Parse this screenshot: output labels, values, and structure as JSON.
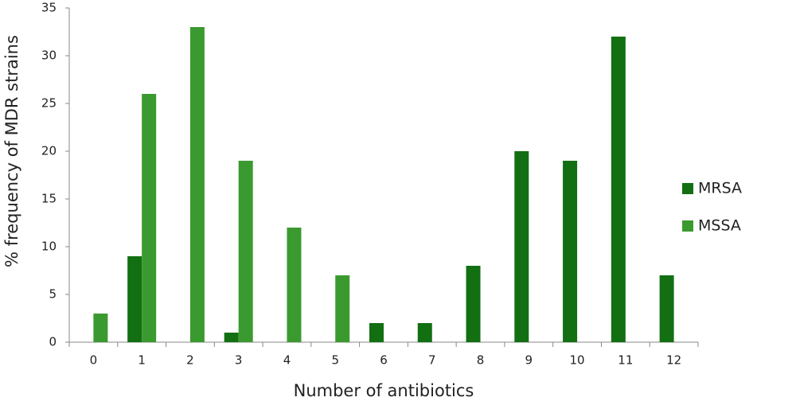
{
  "chart_data": {
    "type": "bar",
    "x_label": "Number of antibiotics",
    "y_label": "% frequency of MDR strains",
    "categories": [
      "0",
      "1",
      "2",
      "3",
      "4",
      "5",
      "6",
      "7",
      "8",
      "9",
      "10",
      "11",
      "12"
    ],
    "series": [
      {
        "name": "MRSA",
        "color": "#126f12",
        "values": [
          0,
          9,
          0,
          1,
          0,
          0,
          2,
          2,
          8,
          20,
          19,
          32,
          7
        ]
      },
      {
        "name": "MSSA",
        "color": "#3b9a2f",
        "values": [
          3,
          26,
          33,
          19,
          12,
          7,
          0,
          0,
          0,
          0,
          0,
          0,
          0
        ]
      }
    ],
    "ylim": [
      0,
      35
    ],
    "yticks": [
      0,
      5,
      10,
      15,
      20,
      25,
      30,
      35
    ],
    "grid": false,
    "legend": "right"
  }
}
